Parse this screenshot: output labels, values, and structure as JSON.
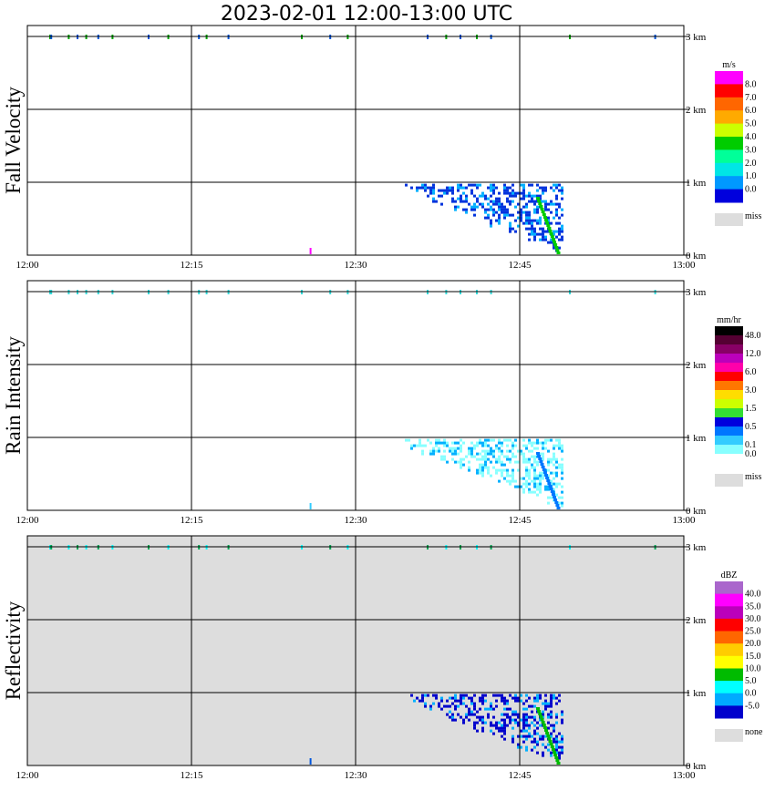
{
  "title": "2023-02-01   12:00-13:00 UTC",
  "x_tick_labels": [
    "12:00",
    "12:15",
    "12:30",
    "12:45",
    "13:00"
  ],
  "y_tick_labels": [
    "0 km",
    "1 km",
    "2 km",
    "3 km"
  ],
  "chart_data": [
    {
      "type": "heatmap",
      "ylabel": "Fall Velocity",
      "xlim": [
        "12:00",
        "13:00"
      ],
      "ylim_km": [
        0,
        3
      ],
      "grid": true,
      "background": "#ffffff",
      "colorbar": {
        "unit": "m/s",
        "labels": [
          "8.0",
          "7.0",
          "6.0",
          "5.0",
          "4.0",
          "3.0",
          "2.0",
          "1.0",
          "0.0"
        ],
        "colors": [
          "#ff00ff",
          "#ff0000",
          "#ff6600",
          "#ffaa00",
          "#ccff00",
          "#00cc00",
          "#00ff99",
          "#00e6e6",
          "#0099ff",
          "#0000dd"
        ],
        "missing_label": "miss",
        "missing_color": "#dddddd"
      },
      "features": [
        {
          "kind": "echo",
          "t_start_min": 34.5,
          "t_end_min": 48.8,
          "top_km": 1.0,
          "color": "#0033dd"
        },
        {
          "kind": "fall_streak",
          "t_start_min": 46.5,
          "t_end_min": 48.5,
          "top_km": 0.8,
          "color": "#00cc00"
        },
        {
          "kind": "surface_spot",
          "t_min": 25.8,
          "color": "#ff00ff"
        }
      ],
      "top_speckle_colors": [
        "#00aa00",
        "#0055dd"
      ]
    },
    {
      "type": "heatmap",
      "ylabel": "Rain Intensity",
      "xlim": [
        "12:00",
        "13:00"
      ],
      "ylim_km": [
        0,
        3
      ],
      "grid": true,
      "background": "#ffffff",
      "colorbar": {
        "unit": "mm/hr",
        "labels": [
          "48.0",
          "12.0",
          "6.0",
          "3.0",
          "1.5",
          "0.5",
          "0.1",
          "0.0"
        ],
        "label_positions": [
          0,
          2,
          4,
          6,
          8,
          10,
          12,
          13
        ],
        "colors": [
          "#000000",
          "#550033",
          "#880066",
          "#bb00bb",
          "#ff00aa",
          "#ff0000",
          "#ff7700",
          "#ffdd00",
          "#ccff00",
          "#33dd33",
          "#0000dd",
          "#0077ff",
          "#33ccff",
          "#88ffff",
          "#ffffff"
        ],
        "missing_label": "miss",
        "missing_color": "#dddddd"
      },
      "features": [
        {
          "kind": "echo",
          "t_start_min": 34.5,
          "t_end_min": 48.8,
          "top_km": 1.0,
          "color": "#88ffff"
        },
        {
          "kind": "fall_streak",
          "t_start_min": 46.5,
          "t_end_min": 48.5,
          "top_km": 0.8,
          "color": "#0077ff"
        },
        {
          "kind": "surface_spot",
          "t_min": 25.8,
          "color": "#33ccff"
        }
      ],
      "top_speckle_colors": [
        "#33dddd"
      ]
    },
    {
      "type": "heatmap",
      "ylabel": "Reflectivity",
      "xlim": [
        "12:00",
        "13:00"
      ],
      "ylim_km": [
        0,
        3
      ],
      "grid": true,
      "background": "#dddddd",
      "colorbar": {
        "unit": "dBZ",
        "labels": [
          "40.0",
          "35.0",
          "30.0",
          "25.0",
          "20.0",
          "15.0",
          "10.0",
          "5.0",
          "0.0",
          "-5.0"
        ],
        "colors": [
          "#aa66cc",
          "#ff00ff",
          "#bb00bb",
          "#ff0000",
          "#ff6600",
          "#ffcc00",
          "#ffff00",
          "#00bb00",
          "#00ffff",
          "#00aaff",
          "#0000cc"
        ],
        "missing_label": "none",
        "missing_color": "#dddddd"
      },
      "features": [
        {
          "kind": "echo",
          "t_start_min": 34.5,
          "t_end_min": 48.8,
          "top_km": 1.0,
          "color": "#0000cc"
        },
        {
          "kind": "fall_streak",
          "t_start_min": 46.5,
          "t_end_min": 48.5,
          "top_km": 0.8,
          "color": "#00bb00"
        },
        {
          "kind": "surface_spot",
          "t_min": 25.8,
          "color": "#0055dd"
        }
      ],
      "top_speckle_colors": [
        "#00ffff",
        "#00aa55"
      ]
    }
  ]
}
